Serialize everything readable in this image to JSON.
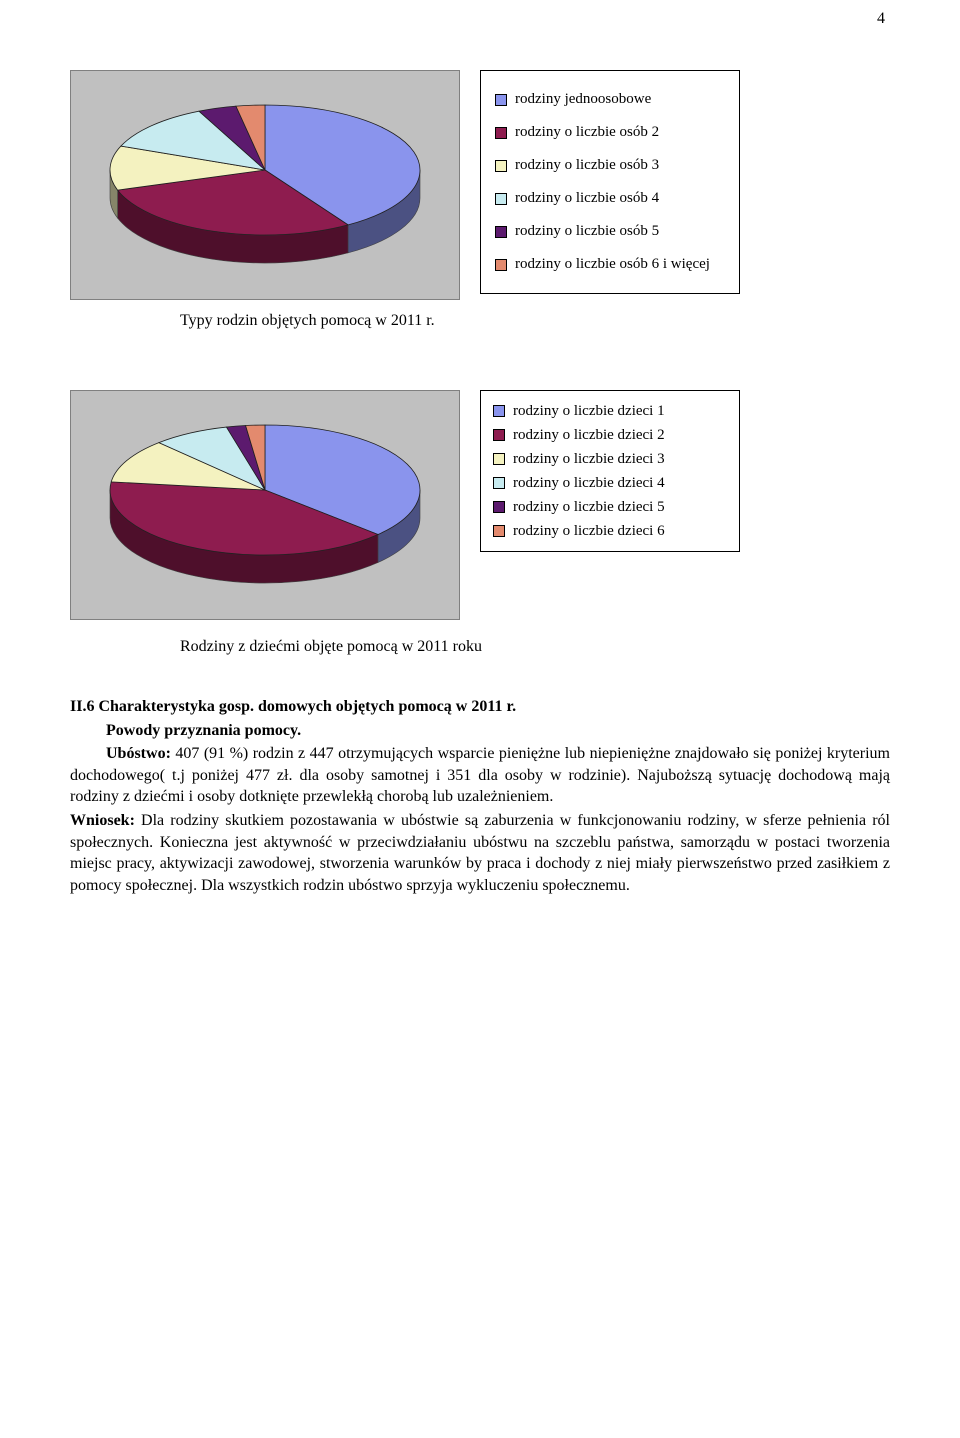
{
  "page_number": "4",
  "chart1": {
    "type": "pie",
    "background_color": "#c0c0c0",
    "plot_border_color": "#808080",
    "slices": [
      {
        "label": "rodziny jednoosobowe",
        "value": 41,
        "color": "#8a94ed"
      },
      {
        "label": "rodziny o liczbie osób 2",
        "value": 29,
        "color": "#8e1c4f"
      },
      {
        "label": "rodziny o liczbie osób 3",
        "value": 11,
        "color": "#f4f2c0"
      },
      {
        "label": "rodziny o liczbie osób 4",
        "value": 12,
        "color": "#c7ebf0"
      },
      {
        "label": "rodziny o liczbie osób 5",
        "value": 4,
        "color": "#5c1a6e"
      },
      {
        "label": "rodziny o liczbie osób 6 i więcej",
        "value": 3,
        "color": "#e38a6e"
      }
    ],
    "caption": "Typy rodzin objętych pomocą w 2011 r."
  },
  "chart2": {
    "type": "pie",
    "background_color": "#c0c0c0",
    "plot_border_color": "#808080",
    "slices": [
      {
        "label": "rodziny  o liczbie dzieci 1",
        "value": 37,
        "color": "#8a94ed"
      },
      {
        "label": "rodziny o liczbie dzieci 2",
        "value": 40,
        "color": "#8e1c4f"
      },
      {
        "label": "rodziny o liczbie dzieci 3",
        "value": 11,
        "color": "#f4f2c0"
      },
      {
        "label": "rodziny o liczbie dzieci 4",
        "value": 8,
        "color": "#c7ebf0"
      },
      {
        "label": "rodziny o liczbie dzieci 5",
        "value": 2,
        "color": "#5c1a6e"
      },
      {
        "label": "rodziny o liczbie dzieci 6",
        "value": 2,
        "color": "#e38a6e"
      }
    ],
    "caption": "Rodziny z dziećmi objęte pomocą w 2011 roku"
  },
  "section_heading": "II.6 Charakterystyka gosp. domowych objętych pomocą w  2011 r.",
  "subheading": "Powody przyznania pomocy.",
  "para1_lead": "Ubóstwo:",
  "para1_rest": " 407 (91 %) rodzin z 447 otrzymujących wsparcie pieniężne lub niepieniężne znajdowało się poniżej kryterium dochodowego( t.j poniżej 477 zł. dla osoby samotnej i 351 dla osoby w rodzinie). Najuboższą sytuację dochodową mają rodziny z dziećmi i osoby dotknięte przewlekłą chorobą lub uzależnieniem.",
  "para2_lead": "Wniosek:",
  "para2_rest": " Dla rodziny skutkiem pozostawania w ubóstwie są zaburzenia w funkcjonowaniu rodziny, w sferze pełnienia ról społecznych. Konieczna jest aktywność w przeciwdziałaniu ubóstwu na szczeblu państwa, samorządu w postaci tworzenia miejsc pracy, aktywizacji zawodowej, stworzenia warunków by praca i dochody z niej miały pierwszeństwo przed zasiłkiem z pomocy społecznej. Dla wszystkich rodzin ubóstwo sprzyja wykluczeniu społecznemu."
}
